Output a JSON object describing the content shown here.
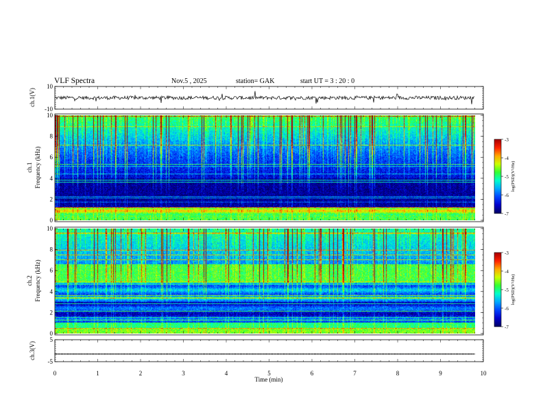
{
  "header": {
    "title": "VLF  Spectra",
    "date": "Nov.5   , 2025",
    "station": "station= GAK",
    "start": "start  UT  =   3   : 20 : 0"
  },
  "colors": {
    "colormap": [
      "#000066",
      "#0000cc",
      "#0044ff",
      "#00aaff",
      "#00ffcc",
      "#33ff33",
      "#ccff00",
      "#ffaa00",
      "#ff2200",
      "#aa0000"
    ],
    "trace": "#000000",
    "background": "#ffffff"
  },
  "chart_data": [
    {
      "type": "line",
      "panel": "ch1-waveform",
      "ylabel": "ch.1(V)",
      "ylim": [
        -10,
        10
      ],
      "yticks": [
        "10",
        "-10"
      ],
      "xlim": [
        0,
        10
      ],
      "mean_level": 0,
      "description_values": "continuous waveform over 0–9.8 min"
    },
    {
      "type": "heatmap",
      "panel": "ch1-spectrogram",
      "ylabel": "ch.1\nFrequency  (kHz)",
      "ylabel_lines": [
        "ch.1",
        "Frequency  (kHz)"
      ],
      "ylim": [
        0,
        10
      ],
      "yticks": [
        "0",
        "2",
        "4",
        "6",
        "8",
        "10"
      ],
      "xlim": [
        0,
        10
      ],
      "data_xmax": 9.8,
      "colorbar": {
        "label": "log(PSD)(V²/Hz)",
        "ticks": [
          "-3",
          "-4",
          "-5",
          "-6",
          "-7"
        ],
        "range": [
          -7,
          -3
        ]
      }
    },
    {
      "type": "heatmap",
      "panel": "ch2-spectrogram",
      "ylabel": "ch.2\nFrequency  (kHz)",
      "ylabel_lines": [
        "ch.2",
        "Frequency  (kHz)"
      ],
      "ylim": [
        0,
        10
      ],
      "yticks": [
        "0",
        "2",
        "4",
        "6",
        "8",
        "10"
      ],
      "xlim": [
        0,
        10
      ],
      "data_xmax": 9.8,
      "colorbar": {
        "label": "log(PSD)(V²/Hz)",
        "ticks": [
          "-3",
          "-4",
          "-5",
          "-6",
          "-7"
        ],
        "range": [
          -7,
          -3
        ]
      }
    },
    {
      "type": "line",
      "panel": "ch3-waveform",
      "ylabel": "ch.3(V)",
      "ylim": [
        -5,
        5
      ],
      "yticks": [
        "5",
        "-5"
      ],
      "xlim": [
        0,
        10
      ],
      "mean_level": -1.5
    }
  ],
  "xaxis": {
    "label": "Time  (min)",
    "ticks": [
      "0",
      "1",
      "2",
      "3",
      "4",
      "5",
      "6",
      "7",
      "8",
      "9",
      "10"
    ]
  }
}
